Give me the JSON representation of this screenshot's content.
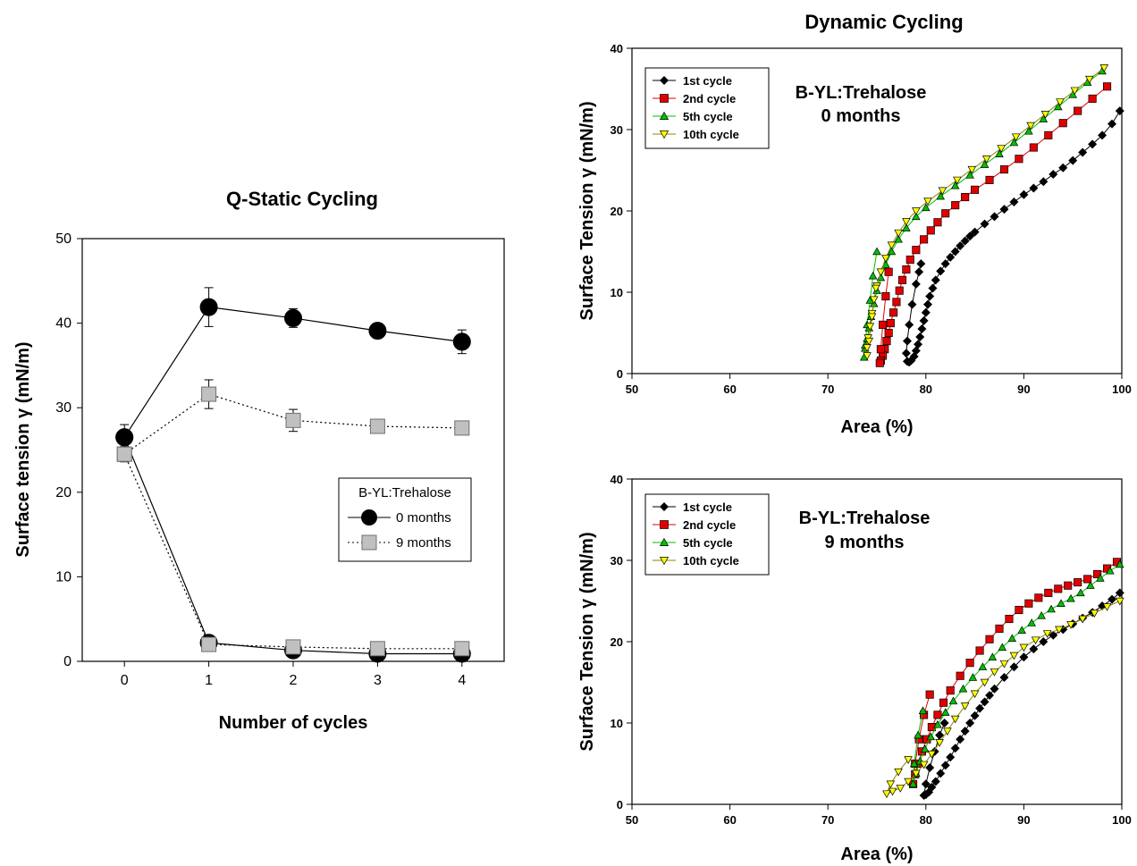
{
  "chart_data": [
    {
      "type": "line",
      "title": "Q-Static Cycling",
      "xlabel": "Number of cycles",
      "ylabel": "Surface tension γ (mN/m)",
      "xlim": [
        -0.5,
        4.5
      ],
      "ylim": [
        0,
        50
      ],
      "xticks": [
        "0",
        "1",
        "2",
        "3",
        "4"
      ],
      "yticks": [
        "0",
        "10",
        "20",
        "30",
        "40",
        "50"
      ],
      "legend_title": "B-YL:Trehalose",
      "series": [
        {
          "name": "0 months",
          "marker": "circle",
          "color": "#000000",
          "line": "solid",
          "max_x": [
            0,
            1,
            2,
            3,
            4
          ],
          "max_y": [
            26.5,
            41.9,
            40.6,
            39.1,
            37.8
          ],
          "max_err": [
            1.5,
            2.3,
            1.1,
            0.9,
            1.4
          ],
          "min_x": [
            0,
            1,
            2,
            3,
            4
          ],
          "min_y": [
            26.5,
            2.2,
            1.3,
            0.9,
            0.9
          ],
          "min_err": [
            0,
            0.4,
            0.4,
            0.3,
            0.3
          ]
        },
        {
          "name": "9 months",
          "marker": "square",
          "color": "#c0c0c0",
          "line": "dotted",
          "max_x": [
            0,
            1,
            2,
            3,
            4
          ],
          "max_y": [
            24.5,
            31.6,
            28.5,
            27.8,
            27.6
          ],
          "max_err": [
            0.9,
            1.7,
            1.3,
            0.8,
            0.6
          ],
          "min_x": [
            0,
            1,
            2,
            3,
            4
          ],
          "min_y": [
            24.5,
            2.0,
            1.7,
            1.5,
            1.5
          ],
          "min_err": [
            0,
            0.4,
            0.3,
            0.3,
            0.3
          ]
        }
      ]
    },
    {
      "type": "scatter",
      "title": "Dynamic Cycling",
      "annotation": [
        "B-YL:Trehalose",
        "0 months"
      ],
      "xlabel": "Area (%)",
      "ylabel": "Surface Tension γ (mN/m)",
      "xlim": [
        50,
        100
      ],
      "ylim": [
        0,
        40
      ],
      "xticks": [
        "50",
        "60",
        "70",
        "80",
        "90",
        "100"
      ],
      "yticks": [
        "0",
        "10",
        "20",
        "30",
        "40"
      ],
      "series": [
        {
          "name": "1st cycle",
          "marker": "diamond",
          "color": "#000000",
          "x": [
            99.8,
            99.0,
            98.0,
            97.0,
            96.0,
            95.0,
            94.0,
            93.0,
            92.0,
            91.0,
            90.0,
            89.0,
            88.0,
            87.0,
            86.0,
            85.0,
            84.5,
            84.0,
            83.5,
            83.0,
            82.5,
            82.0,
            81.5,
            81.0,
            80.7,
            80.4,
            80.2,
            80.0,
            79.8,
            79.6,
            79.4,
            79.2,
            79.0,
            78.8,
            78.5,
            78.3,
            78.1,
            78.0,
            78.1,
            78.3,
            78.6,
            79.0,
            79.3,
            79.5
          ],
          "y": [
            32.3,
            30.7,
            29.3,
            28.2,
            27.2,
            26.2,
            25.3,
            24.5,
            23.6,
            22.8,
            22.0,
            21.1,
            20.2,
            19.3,
            18.4,
            17.4,
            16.9,
            16.3,
            15.7,
            15.0,
            14.3,
            13.5,
            12.6,
            11.5,
            10.5,
            9.5,
            8.5,
            7.5,
            6.5,
            5.5,
            4.5,
            3.6,
            2.8,
            2.1,
            1.6,
            1.4,
            1.5,
            2.5,
            4.0,
            6.0,
            8.5,
            11.0,
            12.5,
            13.5
          ]
        },
        {
          "name": "2nd cycle",
          "marker": "square",
          "color": "#e00000",
          "x": [
            98.5,
            97.0,
            95.5,
            94.0,
            92.5,
            91.0,
            89.5,
            88.0,
            86.5,
            85.0,
            84.0,
            83.0,
            82.0,
            81.2,
            80.5,
            79.8,
            79.0,
            78.4,
            78.0,
            77.6,
            77.3,
            77.0,
            76.7,
            76.4,
            76.2,
            76.0,
            75.8,
            75.6,
            75.4,
            75.3,
            75.4,
            75.6,
            75.9,
            76.2
          ],
          "y": [
            35.3,
            33.8,
            32.3,
            30.8,
            29.3,
            27.8,
            26.4,
            25.1,
            23.8,
            22.6,
            21.7,
            20.7,
            19.7,
            18.6,
            17.6,
            16.5,
            15.2,
            14.0,
            12.8,
            11.5,
            10.2,
            8.8,
            7.5,
            6.2,
            5.0,
            4.0,
            3.0,
            2.2,
            1.6,
            1.3,
            3.0,
            6.0,
            9.5,
            12.5
          ]
        },
        {
          "name": "5th cycle",
          "marker": "triangle-up",
          "color": "#00c000",
          "x": [
            98.0,
            96.5,
            95.0,
            93.5,
            92.0,
            90.5,
            89.0,
            87.5,
            86.0,
            84.5,
            83.0,
            81.5,
            80.0,
            79.0,
            78.0,
            77.2,
            76.5,
            75.9,
            75.4,
            75.0,
            74.7,
            74.4,
            74.2,
            74.0,
            73.8,
            73.7,
            73.8,
            74.0,
            74.3,
            74.6,
            75.0
          ],
          "y": [
            37.2,
            35.8,
            34.3,
            32.8,
            31.3,
            29.8,
            28.4,
            27.0,
            25.7,
            24.4,
            23.1,
            21.8,
            20.4,
            19.3,
            17.9,
            16.5,
            15.0,
            13.4,
            11.8,
            10.2,
            8.6,
            7.0,
            5.6,
            4.3,
            3.1,
            2.0,
            3.5,
            6.0,
            9.0,
            12.0,
            15.0
          ]
        },
        {
          "name": "10th cycle",
          "marker": "triangle-down",
          "color": "#ffff00",
          "x": [
            98.2,
            96.7,
            95.2,
            93.7,
            92.2,
            90.7,
            89.2,
            87.7,
            86.2,
            84.7,
            83.2,
            81.7,
            80.2,
            79.0,
            78.0,
            77.2,
            76.5,
            75.9,
            75.4,
            75.0,
            74.7,
            74.5,
            74.3,
            74.1,
            74.0,
            74.0,
            74.2,
            74.5,
            74.9
          ],
          "y": [
            37.6,
            36.2,
            34.8,
            33.4,
            31.9,
            30.5,
            29.1,
            27.7,
            26.4,
            25.1,
            23.8,
            22.5,
            21.2,
            20.0,
            18.7,
            17.3,
            15.8,
            14.2,
            12.5,
            10.8,
            9.1,
            7.4,
            5.8,
            4.4,
            3.2,
            2.2,
            4.0,
            7.0,
            10.5
          ]
        }
      ]
    },
    {
      "type": "scatter",
      "annotation": [
        "B-YL:Trehalose",
        "9 months"
      ],
      "xlabel": "Area (%)",
      "ylabel": "Surface Tension γ (mN/m)",
      "xlim": [
        50,
        100
      ],
      "ylim": [
        0,
        40
      ],
      "xticks": [
        "50",
        "60",
        "70",
        "80",
        "90",
        "100"
      ],
      "yticks": [
        "0",
        "10",
        "20",
        "30",
        "40"
      ],
      "series": [
        {
          "name": "1st cycle",
          "marker": "diamond",
          "color": "#000000",
          "x": [
            99.8,
            99.0,
            98.0,
            97.0,
            96.0,
            95.0,
            94.0,
            93.0,
            92.0,
            91.0,
            90.0,
            89.0,
            88.0,
            87.0,
            86.5,
            86.0,
            85.5,
            85.0,
            84.5,
            84.0,
            83.5,
            83.0,
            82.5,
            82.0,
            81.5,
            81.0,
            80.6,
            80.3,
            80.0,
            79.8,
            80.0,
            80.4,
            80.9,
            81.4,
            81.9
          ],
          "y": [
            26.0,
            25.2,
            24.4,
            23.6,
            22.9,
            22.2,
            21.5,
            20.8,
            20.0,
            19.1,
            18.1,
            16.9,
            15.6,
            14.2,
            13.4,
            12.6,
            11.8,
            10.9,
            10.0,
            9.0,
            8.0,
            6.9,
            5.8,
            4.8,
            3.8,
            2.8,
            2.1,
            1.5,
            1.2,
            1.1,
            2.5,
            4.5,
            6.5,
            8.5,
            10.0
          ]
        },
        {
          "name": "2nd cycle",
          "marker": "square",
          "color": "#e00000",
          "x": [
            99.5,
            98.5,
            97.5,
            96.5,
            95.5,
            94.5,
            93.5,
            92.5,
            91.5,
            90.5,
            89.5,
            88.5,
            87.5,
            86.5,
            85.5,
            84.5,
            83.5,
            82.5,
            81.8,
            81.2,
            80.6,
            80.1,
            79.6,
            79.2,
            78.9,
            78.7,
            78.9,
            79.3,
            79.8,
            80.4
          ],
          "y": [
            29.8,
            29.0,
            28.3,
            27.7,
            27.3,
            26.9,
            26.5,
            26.0,
            25.4,
            24.7,
            23.9,
            22.8,
            21.6,
            20.3,
            18.9,
            17.4,
            15.8,
            14.0,
            12.5,
            11.0,
            9.5,
            8.0,
            6.5,
            5.0,
            3.7,
            2.5,
            5.0,
            8.0,
            11.0,
            13.5
          ]
        },
        {
          "name": "5th cycle",
          "marker": "triangle-up",
          "color": "#00c000",
          "x": [
            99.8,
            98.8,
            97.8,
            96.8,
            95.8,
            94.8,
            93.8,
            92.8,
            91.8,
            90.8,
            89.8,
            88.8,
            87.8,
            86.8,
            85.8,
            84.8,
            83.8,
            82.8,
            82.0,
            81.2,
            80.5,
            79.9,
            79.4,
            79.0,
            78.7,
            78.8,
            79.2,
            79.7
          ],
          "y": [
            29.5,
            28.7,
            27.8,
            26.9,
            26.0,
            25.3,
            24.7,
            24.0,
            23.2,
            22.3,
            21.4,
            20.4,
            19.3,
            18.1,
            16.9,
            15.6,
            14.2,
            12.7,
            11.3,
            9.8,
            8.3,
            6.8,
            5.3,
            3.8,
            2.5,
            5.0,
            8.5,
            11.5
          ]
        },
        {
          "name": "10th cycle",
          "marker": "triangle-down",
          "color": "#ffff00",
          "x": [
            99.8,
            98.5,
            97.2,
            96.0,
            94.8,
            93.6,
            92.4,
            91.2,
            90.0,
            89.0,
            88.0,
            87.0,
            86.0,
            85.0,
            84.0,
            83.0,
            82.2,
            81.4,
            80.6,
            79.8,
            79.0,
            78.2,
            77.4,
            76.6,
            76.0,
            76.4,
            77.2,
            78.2
          ],
          "y": [
            25.0,
            24.3,
            23.5,
            22.8,
            22.1,
            21.5,
            21.0,
            20.2,
            19.3,
            18.3,
            17.3,
            16.3,
            15.0,
            13.6,
            12.1,
            10.5,
            9.0,
            7.6,
            6.2,
            4.9,
            3.8,
            2.8,
            2.0,
            1.6,
            1.3,
            2.5,
            4.0,
            5.5
          ]
        }
      ]
    }
  ]
}
